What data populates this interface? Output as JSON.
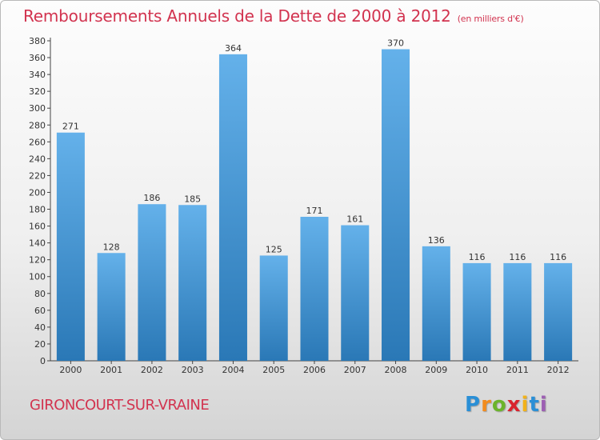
{
  "title": "Remboursements Annuels de la Dette de 2000 à 2012",
  "subtitle": "(en milliers d'€)",
  "commune": "GIRONCOURT-SUR-VRAINE",
  "logo": {
    "letters": [
      "P",
      "r",
      "o",
      "x",
      "i",
      "t",
      "i"
    ],
    "colors": [
      "#2a8fd6",
      "#f28c1e",
      "#6bb42b",
      "#d9232e",
      "#f2b21a",
      "#2a8fd6",
      "#9d5fb3"
    ]
  },
  "colors": {
    "bar_light": "#64b1ea",
    "bar_dark": "#2a78b6",
    "title": "#d2334f"
  },
  "chart_data": {
    "type": "bar",
    "categories": [
      "2000",
      "2001",
      "2002",
      "2003",
      "2004",
      "2005",
      "2006",
      "2007",
      "2008",
      "2009",
      "2010",
      "2011",
      "2012"
    ],
    "values": [
      271,
      128,
      186,
      185,
      364,
      125,
      171,
      161,
      370,
      136,
      116,
      116,
      116
    ],
    "data_labels": [
      "271",
      "128",
      "186",
      "185",
      "364",
      "125",
      "171",
      "161",
      "370",
      "136",
      "116",
      "116",
      "116"
    ],
    "yticks": [
      "0",
      "20",
      "40",
      "60",
      "80",
      "100",
      "120",
      "140",
      "160",
      "180",
      "200",
      "220",
      "240",
      "260",
      "280",
      "300",
      "320",
      "340",
      "360",
      "380"
    ],
    "ylim": [
      0,
      380
    ],
    "ystep": 20,
    "grid": false
  }
}
